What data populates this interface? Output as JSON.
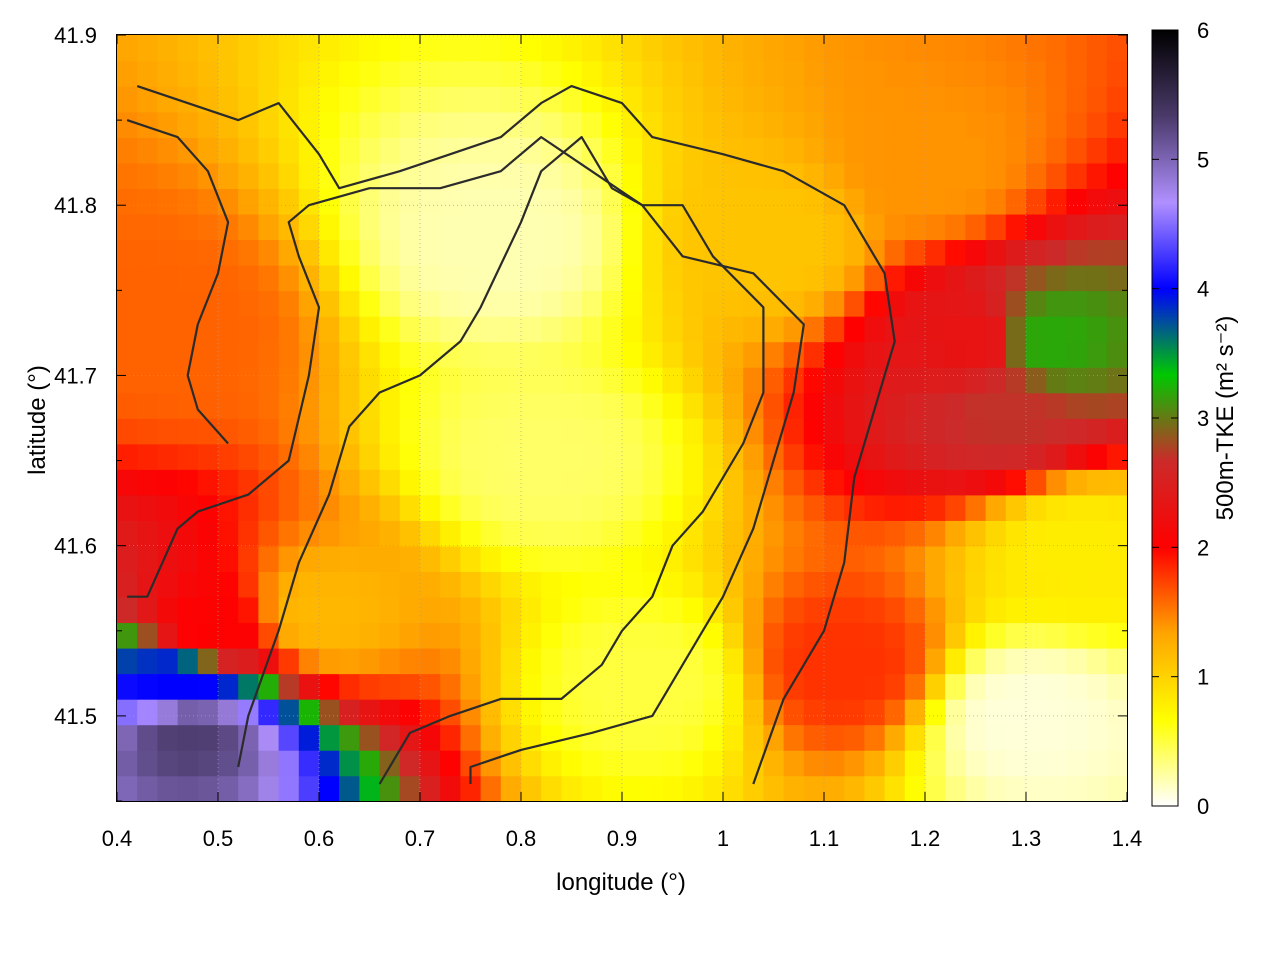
{
  "chart_data": {
    "type": "heatmap",
    "title": "",
    "xlabel": "longitude (°)",
    "ylabel": "latitude (°)",
    "colorbar_label": "500m-TKE (m² s⁻²)",
    "xlim": [
      0.4,
      1.4
    ],
    "ylim": [
      41.45,
      41.9
    ],
    "x_ticks": [
      0.4,
      0.5,
      0.6,
      0.7,
      0.8,
      0.9,
      1.0,
      1.1,
      1.2,
      1.3,
      1.4
    ],
    "x_tick_labels": [
      "0.4",
      "0.5",
      "0.6",
      "0.7",
      "0.8",
      "0.9",
      "1",
      "1.1",
      "1.2",
      "1.3",
      "1.4"
    ],
    "y_ticks": [
      41.5,
      41.6,
      41.7,
      41.8,
      41.9
    ],
    "y_tick_labels": [
      "41.5",
      "41.6",
      "41.7",
      "41.8",
      "41.9"
    ],
    "colorbar_ticks": [
      0,
      1,
      2,
      3,
      4,
      5,
      6
    ],
    "colorbar_tick_labels": [
      "0",
      "1",
      "2",
      "3",
      "4",
      "5",
      "6"
    ],
    "color_range": [
      0,
      6
    ],
    "colormap": [
      "#ffffff",
      "#ffff00",
      "#ffa500",
      "#ff0000",
      "#cc2a2a",
      "#00c800",
      "#0000ff",
      "#b090ff",
      "#4a3a6a",
      "#000000"
    ],
    "grid": true,
    "field_summary": [
      {
        "lon": 0.47,
        "lat": 41.49,
        "value": 5.3
      },
      {
        "lon": 0.46,
        "lat": 41.52,
        "value": 4.0
      },
      {
        "lon": 0.49,
        "lat": 41.55,
        "value": 2.0
      },
      {
        "lon": 0.45,
        "lat": 41.73,
        "value": 1.6
      },
      {
        "lon": 0.6,
        "lat": 41.56,
        "value": 1.2
      },
      {
        "lon": 0.78,
        "lat": 41.78,
        "value": 0.2
      },
      {
        "lon": 0.82,
        "lat": 41.65,
        "value": 0.4
      },
      {
        "lon": 0.93,
        "lat": 41.52,
        "value": 0.5
      },
      {
        "lon": 1.05,
        "lat": 41.78,
        "value": 1.1
      },
      {
        "lon": 1.2,
        "lat": 41.82,
        "value": 1.4
      },
      {
        "lon": 1.32,
        "lat": 41.72,
        "value": 3.2
      },
      {
        "lon": 1.25,
        "lat": 41.72,
        "value": 2.3
      },
      {
        "lon": 1.28,
        "lat": 41.68,
        "value": 2.7
      },
      {
        "lon": 1.12,
        "lat": 41.53,
        "value": 1.8
      },
      {
        "lon": 1.3,
        "lat": 41.5,
        "value": 0.1
      },
      {
        "lon": 1.35,
        "lat": 41.6,
        "value": 0.8
      }
    ],
    "contours": [
      [
        [
          0.42,
          41.87
        ],
        [
          0.47,
          41.86
        ],
        [
          0.52,
          41.85
        ],
        [
          0.56,
          41.86
        ],
        [
          0.6,
          41.83
        ],
        [
          0.62,
          41.81
        ],
        [
          0.68,
          41.82
        ],
        [
          0.73,
          41.83
        ],
        [
          0.78,
          41.84
        ],
        [
          0.82,
          41.86
        ],
        [
          0.85,
          41.87
        ],
        [
          0.9,
          41.86
        ],
        [
          0.93,
          41.84
        ],
        [
          1.0,
          41.83
        ],
        [
          1.06,
          41.82
        ],
        [
          1.12,
          41.8
        ],
        [
          1.16,
          41.76
        ],
        [
          1.17,
          41.72
        ],
        [
          1.15,
          41.68
        ],
        [
          1.13,
          41.64
        ],
        [
          1.12,
          41.59
        ],
        [
          1.1,
          41.55
        ],
        [
          1.06,
          41.51
        ],
        [
          1.03,
          41.46
        ]
      ],
      [
        [
          0.41,
          41.85
        ],
        [
          0.46,
          41.84
        ],
        [
          0.49,
          41.82
        ],
        [
          0.51,
          41.79
        ],
        [
          0.5,
          41.76
        ],
        [
          0.48,
          41.73
        ],
        [
          0.47,
          41.7
        ],
        [
          0.48,
          41.68
        ],
        [
          0.51,
          41.66
        ]
      ],
      [
        [
          0.41,
          41.57
        ],
        [
          0.43,
          41.57
        ],
        [
          0.46,
          41.61
        ],
        [
          0.48,
          41.62
        ],
        [
          0.53,
          41.63
        ],
        [
          0.57,
          41.65
        ],
        [
          0.59,
          41.7
        ],
        [
          0.6,
          41.74
        ],
        [
          0.58,
          41.77
        ],
        [
          0.57,
          41.79
        ],
        [
          0.59,
          41.8
        ],
        [
          0.65,
          41.81
        ],
        [
          0.72,
          41.81
        ],
        [
          0.78,
          41.82
        ],
        [
          0.82,
          41.84
        ],
        [
          0.87,
          41.82
        ],
        [
          0.92,
          41.8
        ],
        [
          0.96,
          41.77
        ],
        [
          1.03,
          41.76
        ],
        [
          1.08,
          41.73
        ],
        [
          1.07,
          41.69
        ],
        [
          1.05,
          41.65
        ],
        [
          1.03,
          41.61
        ],
        [
          1.0,
          41.57
        ],
        [
          0.96,
          41.53
        ],
        [
          0.93,
          41.5
        ],
        [
          0.87,
          41.49
        ],
        [
          0.8,
          41.48
        ],
        [
          0.75,
          41.47
        ],
        [
          0.75,
          41.46
        ]
      ],
      [
        [
          0.66,
          41.46
        ],
        [
          0.69,
          41.49
        ],
        [
          0.73,
          41.5
        ],
        [
          0.78,
          41.51
        ],
        [
          0.84,
          41.51
        ],
        [
          0.88,
          41.53
        ],
        [
          0.9,
          41.55
        ],
        [
          0.93,
          41.57
        ],
        [
          0.95,
          41.6
        ],
        [
          0.98,
          41.62
        ],
        [
          1.02,
          41.66
        ],
        [
          1.04,
          41.69
        ],
        [
          1.04,
          41.74
        ],
        [
          0.99,
          41.77
        ],
        [
          0.96,
          41.8
        ],
        [
          0.92,
          41.8
        ],
        [
          0.89,
          41.81
        ],
        [
          0.86,
          41.84
        ],
        [
          0.82,
          41.82
        ],
        [
          0.8,
          41.79
        ],
        [
          0.76,
          41.74
        ],
        [
          0.74,
          41.72
        ],
        [
          0.7,
          41.7
        ],
        [
          0.66,
          41.69
        ],
        [
          0.63,
          41.67
        ],
        [
          0.61,
          41.63
        ],
        [
          0.58,
          41.59
        ],
        [
          0.56,
          41.55
        ],
        [
          0.53,
          41.5
        ],
        [
          0.52,
          41.47
        ]
      ]
    ]
  }
}
